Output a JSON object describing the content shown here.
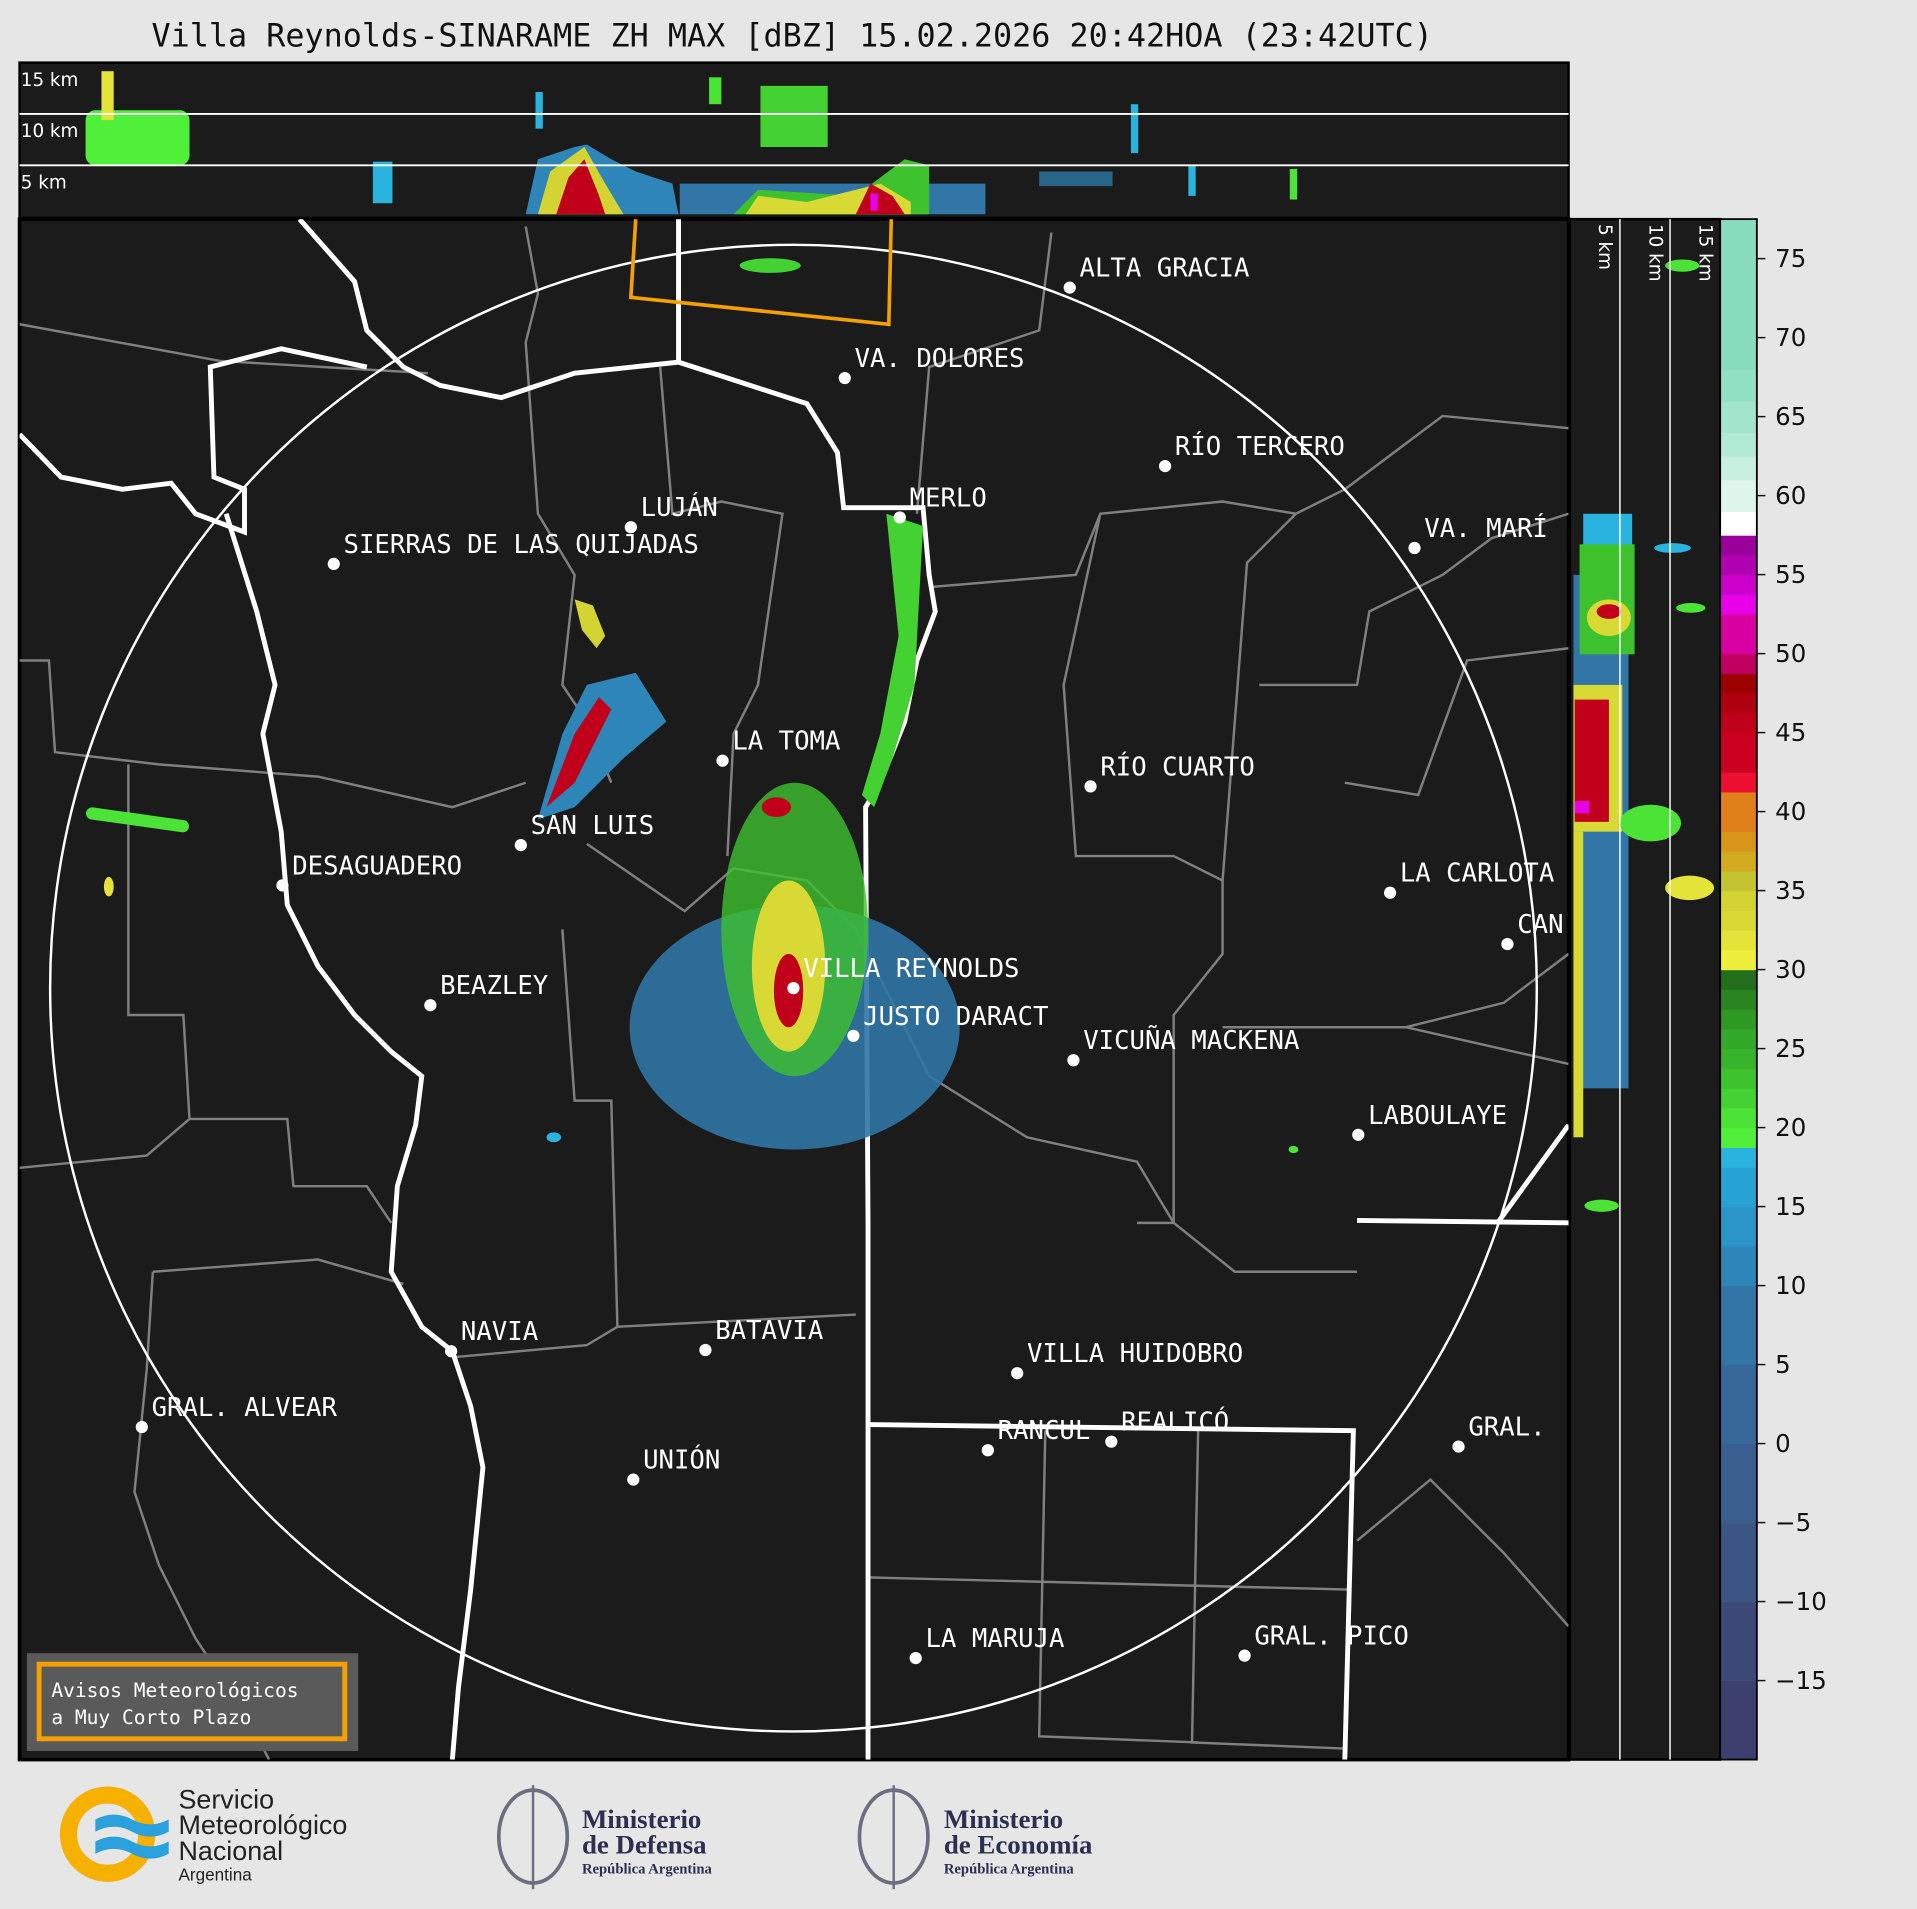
{
  "title": "Villa Reynolds-SINARAME ZH MAX [dBZ] 15.02.2026 20:42HOA (23:42UTC)",
  "top_panel": {
    "labels": [
      "15 km",
      "10 km",
      "5 km"
    ]
  },
  "side_panel": {
    "labels": [
      "5 km",
      "10 km",
      "15 km"
    ]
  },
  "cities": [
    {
      "name": "ALTA GRACIA"
    },
    {
      "name": "VA. DOLORES"
    },
    {
      "name": "RÍO TERCERO"
    },
    {
      "name": "MERLO"
    },
    {
      "name": "LUJÁN"
    },
    {
      "name": "SIERRAS DE LAS QUIJADAS"
    },
    {
      "name": "VA. MARÍ"
    },
    {
      "name": "LA TOMA"
    },
    {
      "name": "RÍO CUARTO"
    },
    {
      "name": "SAN LUIS"
    },
    {
      "name": "DESAGUADERO"
    },
    {
      "name": "LA CARLOTA"
    },
    {
      "name": "CAN"
    },
    {
      "name": "VILLA REYNOLDS"
    },
    {
      "name": "BEAZLEY"
    },
    {
      "name": "JUSTO DARACT"
    },
    {
      "name": "VICUÑA MACKENA"
    },
    {
      "name": "LABOULAYE"
    },
    {
      "name": "NAVIA"
    },
    {
      "name": "BATAVIA"
    },
    {
      "name": "VILLA HUIDOBRO"
    },
    {
      "name": "GRAL. ALVEAR"
    },
    {
      "name": "RANCUL"
    },
    {
      "name": "REALICÓ"
    },
    {
      "name": "GRAL."
    },
    {
      "name": "UNIÓN"
    },
    {
      "name": "LA MARUJA"
    },
    {
      "name": "GRAL. PICO"
    }
  ],
  "warning_box": {
    "line1": "Avisos Meteorológicos",
    "line2": "a Muy Corto Plazo",
    "border_color": "#f5a000"
  },
  "colorbar": {
    "unit": "dBZ",
    "range": [
      -20,
      77.5
    ],
    "ticks": [
      "75",
      "70",
      "65",
      "60",
      "55",
      "50",
      "45",
      "40",
      "35",
      "30",
      "25",
      "20",
      "15",
      "10",
      "5",
      "0",
      "−5",
      "−10",
      "−15"
    ],
    "bins": [
      {
        "from": -20,
        "color": "#3d3f6e"
      },
      {
        "from": -15,
        "color": "#3d4a78"
      },
      {
        "from": -10,
        "color": "#3b5584"
      },
      {
        "from": -5,
        "color": "#385f8e"
      },
      {
        "from": 0,
        "color": "#36699a"
      },
      {
        "from": 5,
        "color": "#3176a6"
      },
      {
        "from": 10,
        "color": "#2e86b8"
      },
      {
        "from": 12.5,
        "color": "#2a95c6"
      },
      {
        "from": 15,
        "color": "#26a3d4"
      },
      {
        "from": 17.5,
        "color": "#2ab3de"
      },
      {
        "from": 18.75,
        "color": "#50f03a"
      },
      {
        "from": 20,
        "color": "#4ae336"
      },
      {
        "from": 21.25,
        "color": "#43d232"
      },
      {
        "from": 22.5,
        "color": "#3dc22e"
      },
      {
        "from": 23.75,
        "color": "#38b42a"
      },
      {
        "from": 25,
        "color": "#34a828"
      },
      {
        "from": 26.25,
        "color": "#2e9a24"
      },
      {
        "from": 27.5,
        "color": "#2a8422"
      },
      {
        "from": 28.75,
        "color": "#236e1c"
      },
      {
        "from": 30,
        "color": "#eeee3c"
      },
      {
        "from": 31.25,
        "color": "#e3e33a"
      },
      {
        "from": 32.5,
        "color": "#d9d935"
      },
      {
        "from": 33.75,
        "color": "#d3d333"
      },
      {
        "from": 35,
        "color": "#c4c430"
      },
      {
        "from": 36.25,
        "color": "#d1aa20"
      },
      {
        "from": 37.5,
        "color": "#d9941c"
      },
      {
        "from": 38.75,
        "color": "#e0801a"
      },
      {
        "from": 41.25,
        "color": "#ee1030"
      },
      {
        "from": 42.5,
        "color": "#cc0020"
      },
      {
        "from": 45,
        "color": "#c0001a"
      },
      {
        "from": 46.25,
        "color": "#b00010"
      },
      {
        "from": 47.5,
        "color": "#9c0000"
      },
      {
        "from": 48.75,
        "color": "#c00060"
      },
      {
        "from": 50,
        "color": "#d800a0"
      },
      {
        "from": 52.5,
        "color": "#e800e8"
      },
      {
        "from": 53.75,
        "color": "#cc00cc"
      },
      {
        "from": 55,
        "color": "#b000b0"
      },
      {
        "from": 56.25,
        "color": "#9a009a"
      },
      {
        "from": 57.5,
        "color": "#ffffff"
      },
      {
        "from": 59,
        "color": "#dff5ec"
      },
      {
        "from": 61,
        "color": "#c8f0e0"
      },
      {
        "from": 62.5,
        "color": "#b2ead5"
      },
      {
        "from": 64,
        "color": "#a2e4cc"
      },
      {
        "from": 66,
        "color": "#92e0c4"
      },
      {
        "from": 68,
        "color": "#88dcbe"
      }
    ]
  },
  "footer": {
    "smn": {
      "line1": "Servicio",
      "line2": "Meteorológico",
      "line3": "Nacional",
      "line4": "Argentina"
    },
    "defensa": {
      "line1": "Ministerio",
      "line2": "de Defensa",
      "line3": "República Argentina"
    },
    "economia": {
      "line1": "Ministerio",
      "line2": "de Economía",
      "line3": "República Argentina"
    }
  }
}
